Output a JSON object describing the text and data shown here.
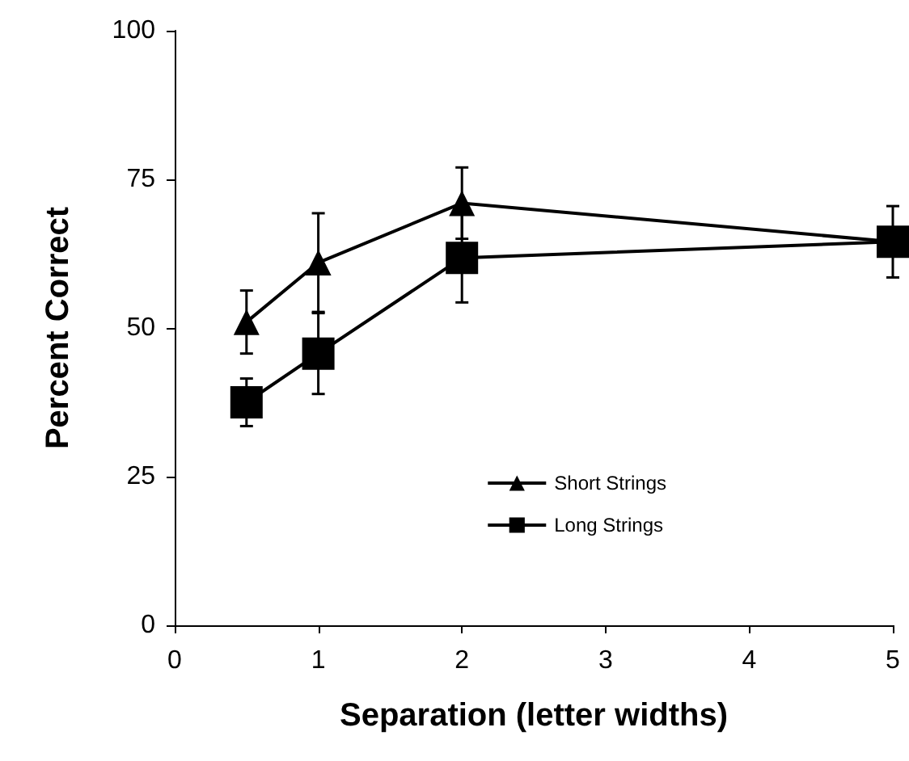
{
  "chart_data": {
    "type": "line",
    "xlabel": "Separation (letter widths)",
    "ylabel": "Percent Correct",
    "xlim": [
      0,
      5
    ],
    "xticks": [
      0,
      1,
      2,
      3,
      4,
      5
    ],
    "ylim": [
      0,
      100
    ],
    "yticks": [
      0,
      25,
      50,
      75,
      100
    ],
    "grid": false,
    "legend": "bottom right",
    "series": [
      {
        "name": "Short Strings",
        "color": "#000000",
        "marker": "triangle",
        "x": [
          0.5,
          1,
          2,
          5
        ],
        "values": [
          51,
          61,
          71,
          64.5
        ],
        "errors": [
          5.3,
          8.3,
          6,
          null
        ]
      },
      {
        "name": "Long Strings",
        "color": "#000000",
        "marker": "square",
        "x": [
          0.5,
          1,
          2,
          5
        ],
        "values": [
          37.5,
          45.7,
          61.8,
          64.5
        ],
        "errors": [
          4,
          6.8,
          7.5,
          6
        ]
      }
    ]
  }
}
